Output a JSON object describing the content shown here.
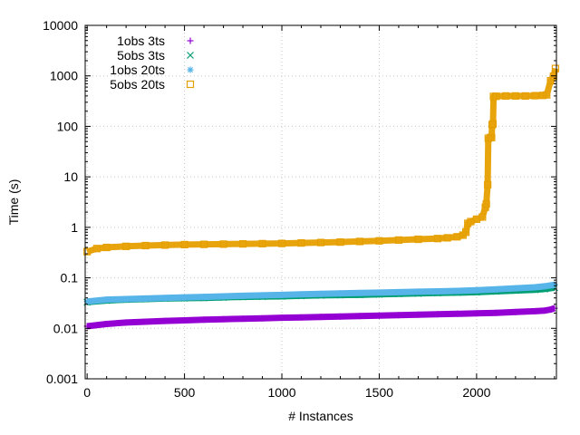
{
  "chart_data": {
    "type": "scatter",
    "title": "",
    "xlabel": "# Instances",
    "ylabel": "Time (s)",
    "xlim": [
      -10,
      2410
    ],
    "ylim": [
      0.001,
      10000
    ],
    "yscale": "log",
    "grid": true,
    "legend_position": "top-left",
    "xticks": [
      0,
      500,
      1000,
      1500,
      2000
    ],
    "xtick_labels": [
      "0",
      "500",
      "1000",
      "1500",
      "2000"
    ],
    "yticks": [
      0.001,
      0.01,
      0.1,
      1,
      10,
      100,
      1000,
      10000
    ],
    "ytick_labels": [
      "0.001",
      "0.01",
      "0.1",
      "1",
      "10",
      "100",
      "1000",
      "10000"
    ],
    "series": [
      {
        "name": "1obs 3ts",
        "marker": "plus",
        "color": "#9400d3",
        "points": [
          [
            0,
            0.011
          ],
          [
            100,
            0.0122
          ],
          [
            200,
            0.013
          ],
          [
            300,
            0.0135
          ],
          [
            400,
            0.014
          ],
          [
            500,
            0.0144
          ],
          [
            600,
            0.0148
          ],
          [
            700,
            0.0152
          ],
          [
            800,
            0.0155
          ],
          [
            900,
            0.0158
          ],
          [
            1000,
            0.0162
          ],
          [
            1100,
            0.0165
          ],
          [
            1200,
            0.0168
          ],
          [
            1300,
            0.0171
          ],
          [
            1400,
            0.0175
          ],
          [
            1500,
            0.0178
          ],
          [
            1600,
            0.0182
          ],
          [
            1700,
            0.0186
          ],
          [
            1800,
            0.019
          ],
          [
            1900,
            0.0194
          ],
          [
            2000,
            0.0198
          ],
          [
            2100,
            0.0203
          ],
          [
            2200,
            0.021
          ],
          [
            2300,
            0.0218
          ],
          [
            2350,
            0.0225
          ],
          [
            2380,
            0.0235
          ],
          [
            2400,
            0.025
          ]
        ]
      },
      {
        "name": "5obs 3ts",
        "marker": "x",
        "color": "#009e73",
        "points": [
          [
            0,
            0.033
          ],
          [
            100,
            0.0355
          ],
          [
            200,
            0.037
          ],
          [
            300,
            0.038
          ],
          [
            400,
            0.039
          ],
          [
            500,
            0.0395
          ],
          [
            600,
            0.04
          ],
          [
            700,
            0.041
          ],
          [
            800,
            0.042
          ],
          [
            900,
            0.0425
          ],
          [
            1000,
            0.043
          ],
          [
            1100,
            0.044
          ],
          [
            1200,
            0.045
          ],
          [
            1300,
            0.0455
          ],
          [
            1400,
            0.046
          ],
          [
            1500,
            0.047
          ],
          [
            1600,
            0.048
          ],
          [
            1700,
            0.049
          ],
          [
            1800,
            0.05
          ],
          [
            1900,
            0.051
          ],
          [
            2000,
            0.052
          ],
          [
            2100,
            0.054
          ],
          [
            2200,
            0.056
          ],
          [
            2300,
            0.058
          ],
          [
            2350,
            0.06
          ],
          [
            2400,
            0.064
          ]
        ]
      },
      {
        "name": "1obs 20ts",
        "marker": "star",
        "color": "#56b4e9",
        "points": [
          [
            0,
            0.034
          ],
          [
            100,
            0.037
          ],
          [
            200,
            0.038
          ],
          [
            300,
            0.039
          ],
          [
            400,
            0.04
          ],
          [
            500,
            0.041
          ],
          [
            600,
            0.042
          ],
          [
            700,
            0.043
          ],
          [
            800,
            0.044
          ],
          [
            900,
            0.045
          ],
          [
            1000,
            0.046
          ],
          [
            1100,
            0.047
          ],
          [
            1200,
            0.048
          ],
          [
            1300,
            0.049
          ],
          [
            1400,
            0.05
          ],
          [
            1500,
            0.051
          ],
          [
            1600,
            0.052
          ],
          [
            1700,
            0.053
          ],
          [
            1800,
            0.054
          ],
          [
            1900,
            0.055
          ],
          [
            2000,
            0.057
          ],
          [
            2100,
            0.059
          ],
          [
            2200,
            0.062
          ],
          [
            2300,
            0.065
          ],
          [
            2350,
            0.068
          ],
          [
            2400,
            0.073
          ]
        ]
      },
      {
        "name": "5obs 20ts",
        "marker": "square",
        "color": "#e69f00",
        "points": [
          [
            0,
            0.33
          ],
          [
            50,
            0.38
          ],
          [
            100,
            0.4
          ],
          [
            200,
            0.42
          ],
          [
            300,
            0.435
          ],
          [
            400,
            0.445
          ],
          [
            500,
            0.455
          ],
          [
            600,
            0.46
          ],
          [
            700,
            0.465
          ],
          [
            800,
            0.47
          ],
          [
            900,
            0.475
          ],
          [
            1000,
            0.48
          ],
          [
            1100,
            0.49
          ],
          [
            1200,
            0.5
          ],
          [
            1300,
            0.51
          ],
          [
            1400,
            0.525
          ],
          [
            1500,
            0.54
          ],
          [
            1600,
            0.56
          ],
          [
            1700,
            0.58
          ],
          [
            1800,
            0.6
          ],
          [
            1850,
            0.62
          ],
          [
            1900,
            0.65
          ],
          [
            1930,
            0.7
          ],
          [
            1945,
            0.8
          ],
          [
            1955,
            1.2
          ],
          [
            1970,
            1.3
          ],
          [
            2000,
            1.45
          ],
          [
            2030,
            1.6
          ],
          [
            2045,
            2.5
          ],
          [
            2050,
            2.9
          ],
          [
            2057,
            7
          ],
          [
            2060,
            58
          ],
          [
            2070,
            60
          ],
          [
            2077,
            60
          ],
          [
            2080,
            108
          ],
          [
            2084,
            112
          ],
          [
            2087,
            390
          ],
          [
            2100,
            395
          ],
          [
            2150,
            400
          ],
          [
            2200,
            400
          ],
          [
            2250,
            400
          ],
          [
            2300,
            405
          ],
          [
            2340,
            410
          ],
          [
            2360,
            420
          ],
          [
            2380,
            800
          ],
          [
            2395,
            980
          ],
          [
            2405,
            1400
          ]
        ]
      }
    ]
  }
}
